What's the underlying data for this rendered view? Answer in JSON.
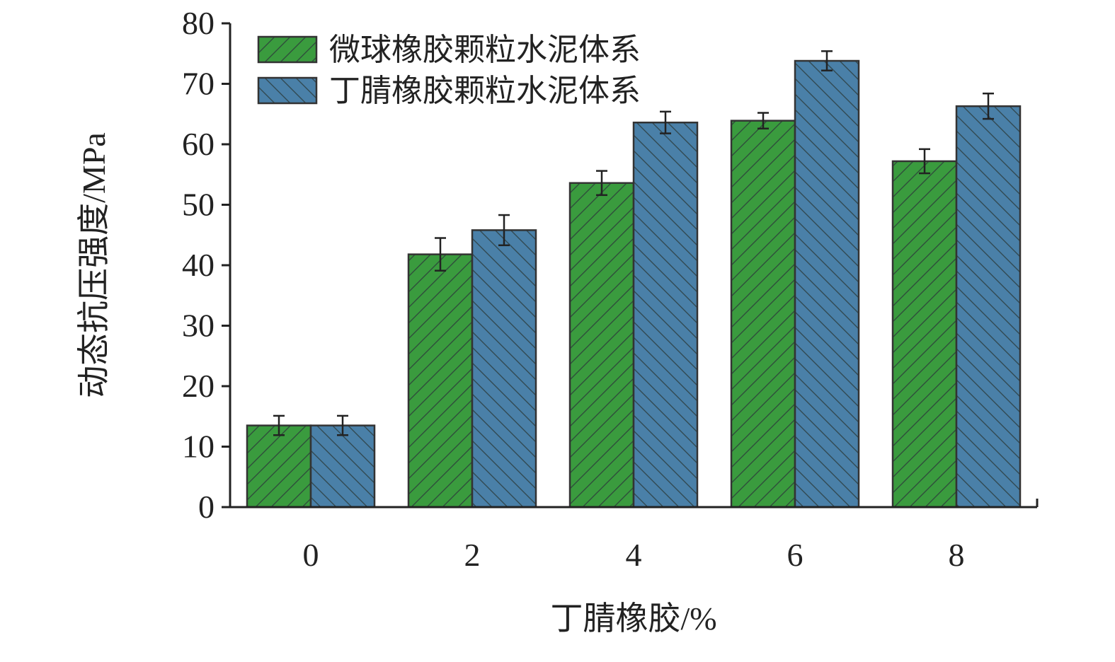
{
  "chart_data": {
    "type": "bar",
    "x_label": "丁腈橡胶/%",
    "y_label": "动态抗压强度/MPa",
    "categories": [
      "0",
      "2",
      "4",
      "6",
      "8"
    ],
    "series": [
      {
        "name": "微球橡胶颗粒水泥体系",
        "color": "#3a9b3e",
        "values": [
          13.5,
          41.8,
          53.6,
          63.9,
          57.2
        ],
        "errors": [
          1.6,
          2.7,
          2.0,
          1.3,
          2.0
        ]
      },
      {
        "name": "丁腈橡胶颗粒水泥体系",
        "color": "#4a80a8",
        "values": [
          13.5,
          45.8,
          63.6,
          73.8,
          66.3
        ],
        "errors": [
          1.6,
          2.5,
          1.8,
          1.6,
          2.1
        ]
      }
    ],
    "ylim": [
      0,
      80
    ],
    "yticks": [
      0,
      10,
      20,
      30,
      40,
      50,
      60,
      70,
      80
    ],
    "legend": "upper left"
  }
}
